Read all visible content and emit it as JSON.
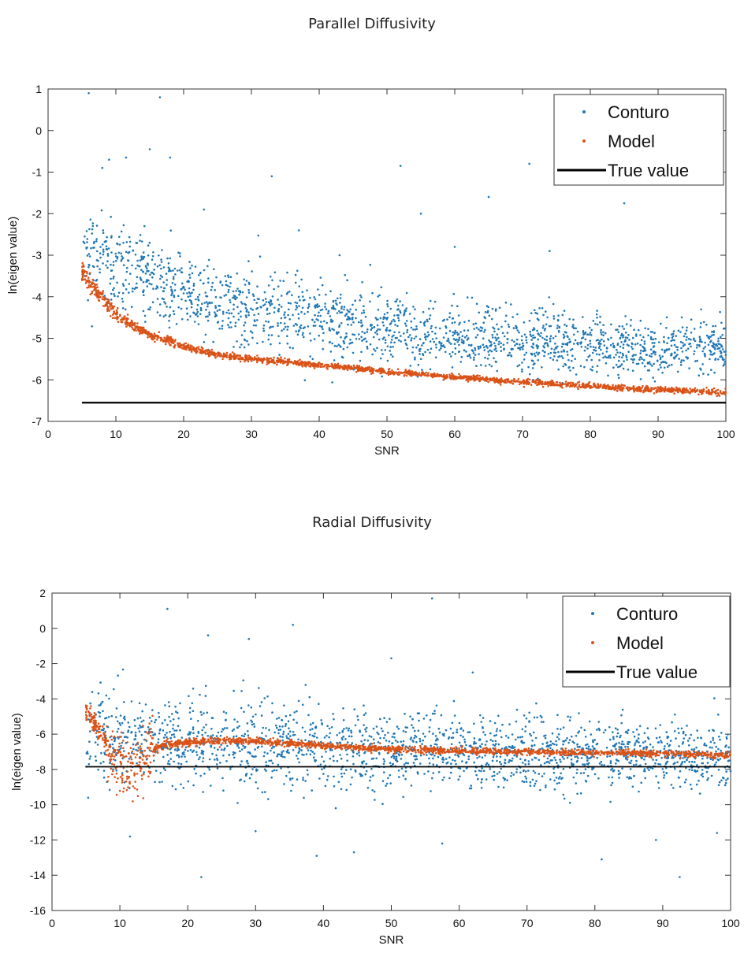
{
  "charts": [
    {
      "title": "Parallel Diffusivity",
      "xlabel": "SNR",
      "ylabel": "ln(eigen value)",
      "legend": [
        "Conturo",
        "Model",
        "True value"
      ]
    },
    {
      "title": "Radial Diffusivity",
      "xlabel": "SNR",
      "ylabel": "ln(eigen value)",
      "legend": [
        "Conturo",
        "Model",
        "True value"
      ]
    }
  ],
  "colors": {
    "conturo": "#1f77b4",
    "model": "#d95319",
    "true_value": "#000000"
  },
  "chart_data": [
    {
      "type": "scatter",
      "title": "Parallel Diffusivity",
      "xlabel": "SNR",
      "ylabel": "ln(eigen value)",
      "xlim": [
        0,
        100
      ],
      "ylim": [
        -7,
        1
      ],
      "xticks": [
        0,
        10,
        20,
        30,
        40,
        50,
        60,
        70,
        80,
        90,
        100
      ],
      "yticks": [
        -7,
        -6,
        -5,
        -4,
        -3,
        -2,
        -1,
        0,
        1
      ],
      "grid": false,
      "legend_position": "top-right",
      "series": [
        {
          "name": "Conturo",
          "kind": "scatter",
          "x": [
            5,
            6,
            8,
            10,
            12,
            15,
            20,
            25,
            30,
            35,
            40,
            45,
            50,
            55,
            60,
            65,
            70,
            75,
            80,
            85,
            90,
            95,
            100
          ],
          "y": [
            -2.6,
            -2.9,
            -3.0,
            -3.2,
            -3.4,
            -3.6,
            -3.95,
            -4.15,
            -4.3,
            -4.45,
            -4.55,
            -4.7,
            -4.8,
            -4.9,
            -4.95,
            -5.0,
            -5.05,
            -5.1,
            -5.15,
            -5.2,
            -5.25,
            -5.25,
            -5.3
          ]
        },
        {
          "name": "Model",
          "kind": "scatter",
          "x": [
            5,
            6,
            8,
            10,
            12,
            15,
            20,
            25,
            30,
            35,
            40,
            45,
            50,
            55,
            60,
            65,
            70,
            75,
            80,
            85,
            90,
            95,
            100
          ],
          "y": [
            -3.4,
            -3.65,
            -4.05,
            -4.4,
            -4.65,
            -4.9,
            -5.2,
            -5.4,
            -5.5,
            -5.57,
            -5.65,
            -5.72,
            -5.8,
            -5.87,
            -5.93,
            -6.0,
            -6.05,
            -6.1,
            -6.15,
            -6.2,
            -6.24,
            -6.27,
            -6.3
          ]
        },
        {
          "name": "True value",
          "kind": "line",
          "x": [
            5,
            100
          ],
          "y": [
            -6.55,
            -6.55
          ]
        }
      ],
      "outliers": {
        "x": [
          6,
          16.5,
          9,
          11.5,
          15,
          18,
          8,
          33,
          52,
          71,
          55,
          23,
          65,
          74,
          85,
          37,
          43,
          60
        ],
        "y": [
          0.9,
          0.8,
          -0.7,
          -0.65,
          -0.45,
          -0.65,
          -0.9,
          -1.1,
          -0.85,
          -0.8,
          -2.0,
          -1.9,
          -1.6,
          -2.9,
          -1.75,
          -2.4,
          -3.0,
          -2.8
        ]
      }
    },
    {
      "type": "scatter",
      "title": "Radial Diffusivity",
      "xlabel": "SNR",
      "ylabel": "ln(eigen value)",
      "xlim": [
        0,
        100
      ],
      "ylim": [
        -16,
        2
      ],
      "xticks": [
        0,
        10,
        20,
        30,
        40,
        50,
        60,
        70,
        80,
        90,
        100
      ],
      "yticks": [
        -16,
        -14,
        -12,
        -10,
        -8,
        -6,
        -4,
        -2,
        0,
        2
      ],
      "grid": false,
      "legend_position": "top-right",
      "series": [
        {
          "name": "Conturo",
          "kind": "scatter",
          "x": [
            5,
            10,
            20,
            30,
            40,
            50,
            60,
            70,
            80,
            90,
            100
          ],
          "y": [
            -6.0,
            -6.3,
            -6.5,
            -6.6,
            -6.8,
            -6.9,
            -7.0,
            -7.1,
            -7.1,
            -7.2,
            -7.2
          ]
        },
        {
          "name": "Model",
          "kind": "scatter",
          "x": [
            5,
            6,
            7,
            8,
            9,
            10,
            11,
            12,
            13,
            14,
            15,
            17,
            20,
            25,
            30,
            40,
            50,
            60,
            70,
            80,
            90,
            100
          ],
          "y": [
            -4.8,
            -5.2,
            -5.8,
            -6.5,
            -7.2,
            -7.8,
            -8.2,
            -8.0,
            -7.5,
            -7.0,
            -6.8,
            -6.6,
            -6.45,
            -6.35,
            -6.4,
            -6.65,
            -6.85,
            -6.95,
            -7.0,
            -7.05,
            -7.1,
            -7.2
          ]
        },
        {
          "name": "True value",
          "kind": "line",
          "x": [
            5,
            100
          ],
          "y": [
            -7.85,
            -7.85
          ]
        }
      ],
      "outliers": {
        "x": [
          17,
          35.5,
          56,
          23,
          29,
          50,
          22,
          11.5,
          39,
          44.5,
          81,
          92.5,
          57.5,
          89,
          30,
          62,
          98
        ],
        "y": [
          1.1,
          0.2,
          1.7,
          -0.4,
          -0.6,
          -1.7,
          -14.1,
          -11.8,
          -12.9,
          -12.7,
          -13.1,
          -14.1,
          -12.2,
          -12.0,
          -11.5,
          -2.5,
          -11.6
        ]
      }
    }
  ]
}
